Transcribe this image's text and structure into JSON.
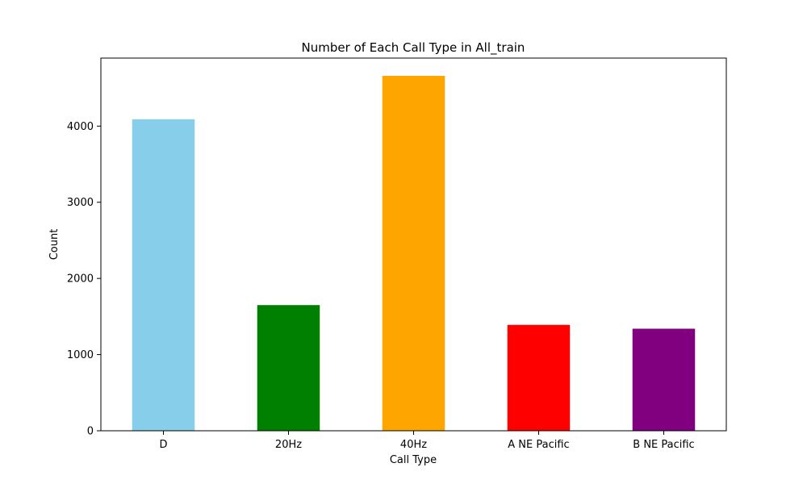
{
  "chart_data": {
    "type": "bar",
    "title": "Number of Each Call Type in All_train",
    "xlabel": "Call Type",
    "ylabel": "Count",
    "categories": [
      "D",
      "20Hz",
      "40Hz",
      "A NE Pacific",
      "B NE Pacific"
    ],
    "values": [
      4090,
      1650,
      4660,
      1390,
      1340
    ],
    "colors": [
      "#87ceeb",
      "#008000",
      "#ffa500",
      "#ff0000",
      "#800080"
    ],
    "yticks": [
      0,
      1000,
      2000,
      3000,
      4000
    ],
    "ytick_labels": [
      "0",
      "1000",
      "2000",
      "3000",
      "4000"
    ],
    "ylim": [
      0,
      4893
    ],
    "grid": false
  }
}
